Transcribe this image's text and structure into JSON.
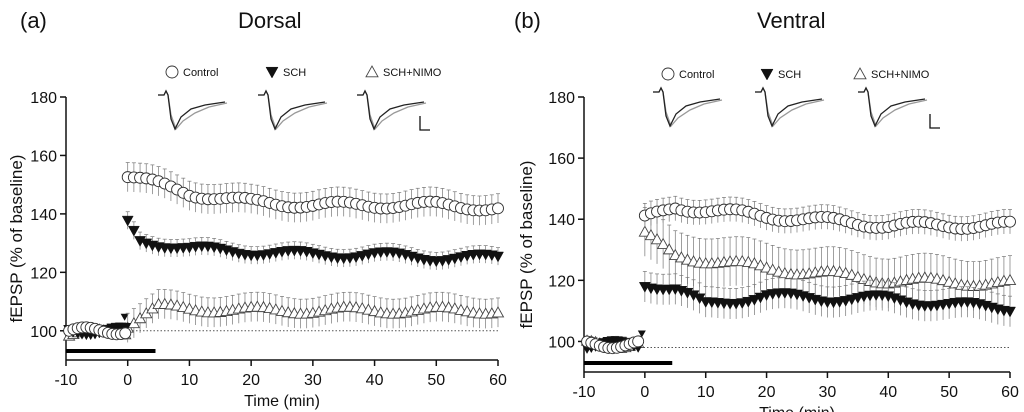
{
  "chart_data": [
    {
      "type": "scatter",
      "panel_label": "(a)",
      "title": "Dorsal",
      "xlabel": "Time (min)",
      "ylabel": "fEPSP (% of baseline)",
      "xlim": [
        -10,
        60
      ],
      "ylim": [
        90,
        180
      ],
      "x_ticks": [
        "-10",
        "0",
        "10",
        "20",
        "30",
        "40",
        "50",
        "60"
      ],
      "y_ticks": [
        "100",
        "120",
        "140",
        "160",
        "180"
      ],
      "baseline": 100,
      "legend_position": "top",
      "bars": [
        {
          "x0": -10,
          "x1": 4.5
        }
      ],
      "arrow_at": -0.5,
      "series": [
        {
          "name": "Control",
          "marker": "circle",
          "baseline_x": [
            -9.5,
            0
          ],
          "baseline_y": [
            100,
            100
          ],
          "x": [
            0,
            10,
            20,
            30,
            40,
            50,
            60
          ],
          "y": [
            153,
            147,
            144,
            143,
            143,
            143,
            142
          ],
          "err": 5
        },
        {
          "name": "SCH",
          "marker": "triangle-down-filled",
          "baseline_x": [
            -9.5,
            0
          ],
          "baseline_y": [
            100,
            100
          ],
          "x": [
            0,
            2,
            10,
            20,
            30,
            40,
            50,
            60
          ],
          "y": [
            137,
            131,
            128,
            127,
            126,
            126,
            125,
            125
          ],
          "err": 3
        },
        {
          "name": "SCH+NIMO",
          "marker": "triangle-up-open",
          "baseline_x": [
            -9.5,
            0
          ],
          "baseline_y": [
            99,
            100
          ],
          "x": [
            0,
            5,
            20,
            40,
            60
          ],
          "y": [
            102,
            108,
            107,
            107,
            107
          ],
          "err": 5
        }
      ]
    },
    {
      "type": "scatter",
      "panel_label": "(b)",
      "title": "Ventral",
      "xlabel": "Time (min)",
      "ylabel": "fEPSP (% of baseline)",
      "xlim": [
        -10,
        60
      ],
      "ylim": [
        90,
        180
      ],
      "x_ticks": [
        "-10",
        "0",
        "10",
        "20",
        "30",
        "40",
        "50",
        "60"
      ],
      "y_ticks": [
        "100",
        "120",
        "140",
        "160",
        "180"
      ],
      "baseline": 98,
      "legend_position": "top",
      "bars": [
        {
          "x0": -10,
          "x1": 4.5
        }
      ],
      "arrow_at": -0.5,
      "series": [
        {
          "name": "Control",
          "marker": "circle",
          "baseline_x": [
            -9.5,
            -0.5
          ],
          "baseline_y": [
            99,
            99
          ],
          "x": [
            0,
            5,
            20,
            40,
            60
          ],
          "y": [
            140,
            144,
            141,
            138,
            138
          ],
          "err": 4
        },
        {
          "name": "SCH",
          "marker": "triangle-down-filled",
          "baseline_x": [
            -9.5,
            -0.5
          ],
          "baseline_y": [
            99,
            99
          ],
          "x": [
            0,
            5,
            10,
            20,
            30,
            40,
            50,
            60
          ],
          "y": [
            119,
            117,
            112,
            115,
            114,
            114,
            112,
            111
          ],
          "err": 5
        },
        {
          "name": "SCH+NIMO",
          "marker": "triangle-up-open",
          "baseline_x": [
            -9.5,
            -0.5
          ],
          "baseline_y": [
            99,
            99
          ],
          "x": [
            0,
            5,
            20,
            40,
            60
          ],
          "y": [
            135,
            128,
            124,
            120,
            119
          ],
          "err": 8
        }
      ]
    }
  ]
}
